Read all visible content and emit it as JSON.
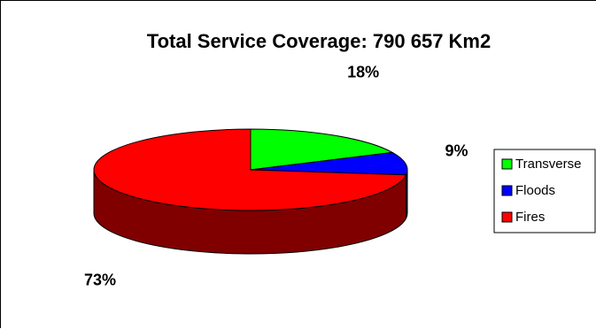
{
  "chart_data": {
    "type": "pie",
    "title": "Total Service Coverage: 790 657 Km2",
    "three_d": true,
    "legend_position": "right",
    "slices": [
      {
        "name": "Transverse",
        "value": 18,
        "label": "18%",
        "color": "#00ff00"
      },
      {
        "name": "Floods",
        "value": 9,
        "label": "9%",
        "color": "#0000ff"
      },
      {
        "name": "Fires",
        "value": 73,
        "label": "73%",
        "color": "#ff0000"
      }
    ]
  }
}
